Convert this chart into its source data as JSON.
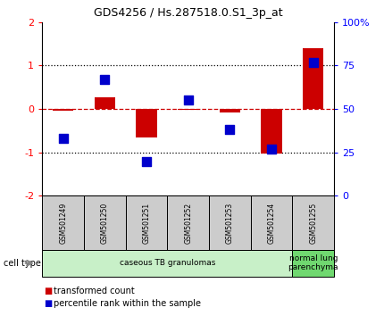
{
  "title": "GDS4256 / Hs.287518.0.S1_3p_at",
  "samples": [
    "GSM501249",
    "GSM501250",
    "GSM501251",
    "GSM501252",
    "GSM501253",
    "GSM501254",
    "GSM501255"
  ],
  "transformed_counts": [
    -0.04,
    0.28,
    -0.65,
    -0.02,
    -0.08,
    -1.02,
    1.4
  ],
  "percentile_ranks": [
    33,
    67,
    20,
    55,
    38,
    27,
    77
  ],
  "groups": [
    {
      "label": "caseous TB granulomas",
      "n_samples": 6,
      "color": "#c8f0c8"
    },
    {
      "label": "normal lung\nparenchyma",
      "n_samples": 1,
      "color": "#70d870"
    }
  ],
  "ylim_left": [
    -2,
    2
  ],
  "yticks_left": [
    -2,
    -1,
    0,
    1,
    2
  ],
  "ylim_right": [
    0,
    100
  ],
  "yticks_right": [
    0,
    25,
    50,
    75,
    100
  ],
  "ytick_labels_right": [
    "0",
    "25",
    "50",
    "75",
    "100%"
  ],
  "bar_color": "#cc0000",
  "dot_color": "#0000cc",
  "bar_width": 0.5,
  "dot_size": 55,
  "cell_type_label": "cell type",
  "legend_items": [
    {
      "color": "#cc0000",
      "label": "transformed count"
    },
    {
      "color": "#0000cc",
      "label": "percentile rank within the sample"
    }
  ],
  "background_color": "#ffffff",
  "tick_label_bg": "#cccccc",
  "group0_color": "#c8f0c8",
  "group1_color": "#70d870"
}
